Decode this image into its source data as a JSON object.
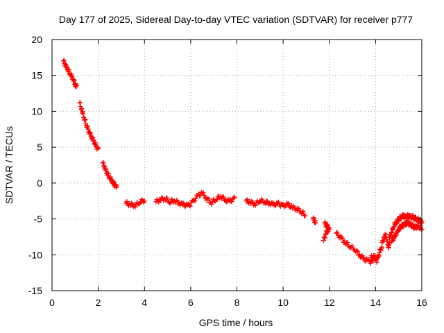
{
  "chart_data": {
    "type": "scatter",
    "title": "Day 177 of 2025, Sidereal Day-to-day VTEC variation (SDTVAR) for receiver p777",
    "xlabel": "GPS time / hours",
    "ylabel": "SDTVAR / TECUs",
    "xlim": [
      0,
      16
    ],
    "ylim": [
      -15,
      20
    ],
    "xticks": [
      0,
      2,
      4,
      6,
      8,
      10,
      12,
      14,
      16
    ],
    "yticks": [
      -15,
      -10,
      -5,
      0,
      5,
      10,
      15,
      20
    ],
    "grid": true,
    "legend": "none",
    "marker": "plus",
    "color": "#ff0000",
    "series": [
      {
        "name": "SDTVAR",
        "segments": [
          [
            [
              0.5,
              17.0
            ],
            [
              0.6,
              16.3
            ],
            [
              0.7,
              15.8
            ],
            [
              0.8,
              15.2
            ],
            [
              0.9,
              14.6
            ],
            [
              1.0,
              13.8
            ],
            [
              1.05,
              13.4
            ]
          ],
          [
            [
              1.2,
              11.2
            ],
            [
              1.3,
              10.0
            ],
            [
              1.4,
              9.0
            ],
            [
              1.5,
              8.0
            ],
            [
              1.6,
              7.2
            ],
            [
              1.7,
              6.5
            ],
            [
              1.8,
              5.8
            ],
            [
              1.9,
              5.2
            ],
            [
              2.0,
              4.6
            ]
          ],
          [
            [
              2.2,
              2.8
            ],
            [
              2.3,
              2.0
            ],
            [
              2.4,
              1.3
            ],
            [
              2.5,
              0.8
            ],
            [
              2.6,
              0.3
            ],
            [
              2.7,
              -0.2
            ],
            [
              2.8,
              -0.6
            ]
          ],
          [
            [
              3.2,
              -2.8
            ],
            [
              3.4,
              -3.0
            ],
            [
              3.6,
              -3.1
            ],
            [
              3.8,
              -2.6
            ],
            [
              4.0,
              -2.4
            ]
          ],
          [
            [
              4.5,
              -2.6
            ],
            [
              4.7,
              -2.3
            ],
            [
              4.9,
              -2.1
            ],
            [
              5.1,
              -2.6
            ],
            [
              5.3,
              -2.4
            ],
            [
              5.5,
              -2.8
            ],
            [
              5.7,
              -3.0
            ],
            [
              5.9,
              -3.2
            ],
            [
              6.1,
              -2.6
            ],
            [
              6.3,
              -1.8
            ],
            [
              6.5,
              -1.4
            ],
            [
              6.7,
              -2.2
            ],
            [
              6.9,
              -2.7
            ],
            [
              7.1,
              -2.2
            ],
            [
              7.3,
              -1.8
            ],
            [
              7.5,
              -2.4
            ],
            [
              7.7,
              -2.5
            ],
            [
              7.9,
              -2.2
            ]
          ],
          [
            [
              8.4,
              -2.5
            ],
            [
              8.6,
              -2.7
            ],
            [
              8.8,
              -2.9
            ],
            [
              9.0,
              -2.4
            ],
            [
              9.2,
              -2.6
            ],
            [
              9.4,
              -2.8
            ],
            [
              9.6,
              -3.0
            ],
            [
              9.8,
              -2.9
            ],
            [
              10.0,
              -3.2
            ],
            [
              10.2,
              -3.0
            ],
            [
              10.4,
              -3.4
            ],
            [
              10.6,
              -3.6
            ],
            [
              10.8,
              -4.0
            ],
            [
              10.95,
              -4.4
            ]
          ],
          [
            [
              11.3,
              -5.0
            ],
            [
              11.4,
              -5.4
            ]
          ],
          [
            [
              11.8,
              -5.6
            ],
            [
              11.9,
              -6.0
            ],
            [
              12.0,
              -6.2
            ]
          ],
          [
            [
              11.75,
              -8.0
            ],
            [
              11.85,
              -7.0
            ],
            [
              11.95,
              -6.5
            ]
          ],
          [
            [
              12.3,
              -7.0
            ],
            [
              12.5,
              -7.6
            ],
            [
              12.7,
              -8.3
            ],
            [
              12.9,
              -8.8
            ],
            [
              13.1,
              -9.2
            ],
            [
              13.3,
              -10.0
            ],
            [
              13.5,
              -10.6
            ],
            [
              13.7,
              -10.9
            ],
            [
              13.9,
              -11.0
            ]
          ],
          [
            [
              13.8,
              -10.4
            ],
            [
              13.95,
              -10.2
            ],
            [
              14.05,
              -10.8
            ],
            [
              14.15,
              -9.8
            ],
            [
              14.25,
              -9.0
            ],
            [
              14.35,
              -7.6
            ],
            [
              14.45,
              -7.3
            ],
            [
              14.55,
              -9.0
            ],
            [
              14.6,
              -8.5
            ]
          ],
          [
            [
              14.6,
              -7.6
            ],
            [
              14.7,
              -6.8
            ],
            [
              14.8,
              -5.9
            ],
            [
              14.9,
              -5.4
            ],
            [
              15.0,
              -5.0
            ],
            [
              15.1,
              -4.7
            ],
            [
              15.2,
              -4.6
            ],
            [
              15.3,
              -4.8
            ],
            [
              15.4,
              -4.6
            ],
            [
              15.5,
              -4.8
            ],
            [
              15.6,
              -4.7
            ],
            [
              15.7,
              -4.9
            ],
            [
              15.8,
              -5.0
            ],
            [
              15.9,
              -5.2
            ],
            [
              16.0,
              -5.4
            ]
          ],
          [
            [
              14.7,
              -8.1
            ],
            [
              14.8,
              -7.6
            ],
            [
              14.9,
              -7.0
            ],
            [
              15.0,
              -6.4
            ],
            [
              15.1,
              -6.0
            ],
            [
              15.2,
              -5.8
            ],
            [
              15.3,
              -5.7
            ],
            [
              15.4,
              -5.6
            ],
            [
              15.5,
              -5.8
            ],
            [
              15.6,
              -6.0
            ],
            [
              15.7,
              -6.2
            ],
            [
              15.8,
              -6.0
            ],
            [
              15.9,
              -6.1
            ],
            [
              16.0,
              -6.3
            ]
          ]
        ]
      }
    ]
  }
}
